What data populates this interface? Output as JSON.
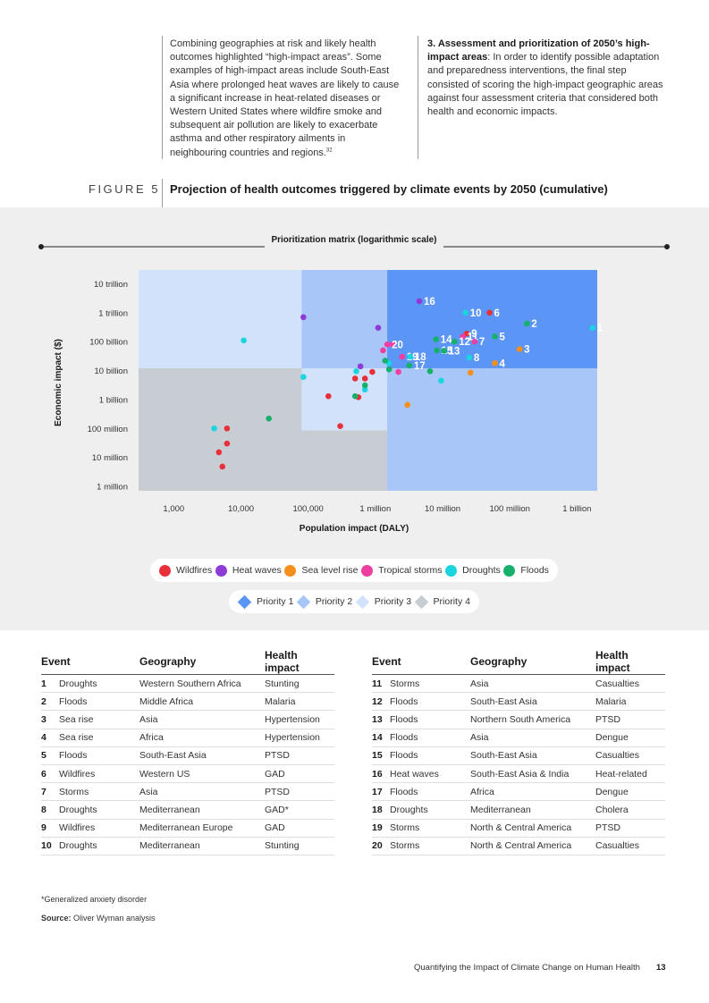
{
  "intro": {
    "left_text": "Combining geographies at risk and likely health outcomes highlighted “high-impact areas”. Some examples of high-impact areas include South-East Asia where prolonged heat waves are likely to cause a significant increase in heat-related diseases or Western United States where wildfire smoke and subsequent air pollution are likely to exacerbate asthma and other respiratory ailments in neighbouring countries and regions.",
    "left_footnote_ref": "32",
    "right_heading": "3. Assessment and prioritization of 2050’s high-impact areas",
    "right_text": ": In order to identify possible adaptation and preparedness interventions, the final step consisted of scoring the high-impact geographic areas against four assessment criteria that considered both health and economic impacts."
  },
  "figure": {
    "label": "FIGURE 5",
    "title": "Projection of health outcomes triggered by climate events by 2050 (cumulative)"
  },
  "chart_data": {
    "type": "scatter",
    "title": "Prioritization matrix (logarithmic scale)",
    "xlabel": "Population impact (DALY)",
    "ylabel": "Economic impact ($)",
    "x_scale": "log",
    "y_scale": "log",
    "xlim": [
      300,
      2000000000
    ],
    "ylim": [
      700000,
      30000000000000
    ],
    "x_ticks": [
      {
        "value": 1000,
        "label": "1,000"
      },
      {
        "value": 10000,
        "label": "10,000"
      },
      {
        "value": 100000,
        "label": "100,000"
      },
      {
        "value": 1000000,
        "label": "1 million"
      },
      {
        "value": 10000000,
        "label": "10 million"
      },
      {
        "value": 100000000,
        "label": "100 million"
      },
      {
        "value": 1000000000,
        "label": "1 billion"
      }
    ],
    "y_ticks": [
      {
        "value": 1000000,
        "label": "1 million"
      },
      {
        "value": 10000000,
        "label": "10 million"
      },
      {
        "value": 100000000,
        "label": "100 million"
      },
      {
        "value": 1000000000,
        "label": "1 billion"
      },
      {
        "value": 10000000000,
        "label": "10 billion"
      },
      {
        "value": 100000000000,
        "label": "100 billion"
      },
      {
        "value": 1000000000000,
        "label": "1 trillion"
      },
      {
        "value": 10000000000000,
        "label": "10 trillion"
      }
    ],
    "priority_zones": [
      {
        "priority": 4,
        "x0": 300,
        "x1": 1500000,
        "y0": 700000,
        "y1": 12000000000
      },
      {
        "priority": 3,
        "x0": 300,
        "x1": 80000,
        "y0": 12000000000,
        "y1": 30000000000000
      },
      {
        "priority": 3,
        "x0": 80000,
        "x1": 1500000,
        "y0": 85000000,
        "y1": 12000000000
      },
      {
        "priority": 2,
        "x0": 80000,
        "x1": 1500000,
        "y0": 12000000000,
        "y1": 30000000000000
      },
      {
        "priority": 2,
        "x0": 1500000,
        "x1": 2000000000,
        "y0": 700000,
        "y1": 12000000000
      },
      {
        "priority": 1,
        "x0": 1500000,
        "x1": 2000000000,
        "y0": 12000000000,
        "y1": 30000000000000
      }
    ],
    "priority_colors": {
      "1": "#5b95f5",
      "2": "#a8c6f8",
      "3": "#d3e2fb",
      "4": "#c8cdd4"
    },
    "series": [
      {
        "name": "Wildfires",
        "color": "#e8303a",
        "points": [
          {
            "x": 4700,
            "y": 15000000
          },
          {
            "x": 5300,
            "y": 4800000
          },
          {
            "x": 6200,
            "y": 30000000
          },
          {
            "x": 6200,
            "y": 100000000
          },
          {
            "x": 200000,
            "y": 1300000000
          },
          {
            "x": 300000,
            "y": 120000000
          },
          {
            "x": 500000,
            "y": 5300000000
          },
          {
            "x": 560000,
            "y": 1200000000
          },
          {
            "x": 700000,
            "y": 5300000000
          },
          {
            "x": 900000,
            "y": 9000000000
          },
          {
            "x": 23000000,
            "y": 190000000000,
            "label": "9"
          },
          {
            "x": 50000000,
            "y": 1000000000000,
            "label": "6"
          }
        ]
      },
      {
        "name": "Heat waves",
        "color": "#8d3ad7",
        "points": [
          {
            "x": 85000,
            "y": 700000000000
          },
          {
            "x": 600000,
            "y": 14000000000
          },
          {
            "x": 1100000,
            "y": 300000000000
          },
          {
            "x": 4500000,
            "y": 2500000000000,
            "label": "16"
          }
        ]
      },
      {
        "name": "Sea level rise",
        "color": "#f58f1b",
        "points": [
          {
            "x": 3000000,
            "y": 650000000
          },
          {
            "x": 26000000,
            "y": 8500000000
          },
          {
            "x": 60000000,
            "y": 18000000000,
            "label": "4"
          },
          {
            "x": 140000000,
            "y": 55000000000,
            "label": "3"
          }
        ]
      },
      {
        "name": "Tropical storms",
        "color": "#ef3ea2",
        "points": [
          {
            "x": 1300000,
            "y": 50000000000
          },
          {
            "x": 1800000,
            "y": 80000000000
          },
          {
            "x": 2200000,
            "y": 9000000000
          },
          {
            "x": 2500000,
            "y": 30000000000,
            "label": "19"
          },
          {
            "x": 1500000,
            "y": 80000000000,
            "label": "20"
          },
          {
            "x": 20000000,
            "y": 150000000000,
            "label": "11"
          },
          {
            "x": 30000000,
            "y": 100000000000,
            "label": "7"
          }
        ]
      },
      {
        "name": "Droughts",
        "color": "#1ad4df",
        "points": [
          {
            "x": 4000,
            "y": 100000000
          },
          {
            "x": 11000,
            "y": 110000000000
          },
          {
            "x": 85000,
            "y": 6000000000
          },
          {
            "x": 520000,
            "y": 9500000000
          },
          {
            "x": 700000,
            "y": 2200000000
          },
          {
            "x": 1600000,
            "y": 18000000000
          },
          {
            "x": 9500000,
            "y": 4500000000
          },
          {
            "x": 22000000,
            "y": 1000000000000,
            "label": "10"
          },
          {
            "x": 3300000,
            "y": 30000000000,
            "label": "18"
          },
          {
            "x": 25000000,
            "y": 28000000000,
            "label": "8"
          },
          {
            "x": 1700000000,
            "y": 300000000000,
            "label": "1"
          }
        ]
      },
      {
        "name": "Floods",
        "color": "#17b06b",
        "points": [
          {
            "x": 26000,
            "y": 220000000
          },
          {
            "x": 500000,
            "y": 1300000000
          },
          {
            "x": 700000,
            "y": 3100000000
          },
          {
            "x": 1400000,
            "y": 22000000000
          },
          {
            "x": 1600000,
            "y": 11000000000
          },
          {
            "x": 6500000,
            "y": 9500000000
          },
          {
            "x": 3200000,
            "y": 15000000000,
            "label": "17"
          },
          {
            "x": 8200000,
            "y": 50000000000,
            "label": "15"
          },
          {
            "x": 10500000,
            "y": 48000000000,
            "label": "13"
          },
          {
            "x": 8000000,
            "y": 120000000000,
            "label": "14"
          },
          {
            "x": 15000000,
            "y": 100000000000,
            "label": "12"
          },
          {
            "x": 60000000,
            "y": 150000000000,
            "label": "5"
          },
          {
            "x": 180000000,
            "y": 420000000000,
            "label": "2"
          }
        ]
      }
    ],
    "legend_events": [
      "Wildfires",
      "Heat waves",
      "Sea level rise",
      "Tropical storms",
      "Droughts",
      "Floods"
    ],
    "legend_priorities": [
      "Priority 1",
      "Priority 2",
      "Priority 3",
      "Priority 4"
    ],
    "legend_placement": "bottom",
    "grid": false
  },
  "tables": {
    "headers": [
      "Event",
      "Geography",
      "Health impact"
    ],
    "left": [
      {
        "num": "1",
        "event": "Droughts",
        "geo": "Western Southern Africa",
        "impact": "Stunting"
      },
      {
        "num": "2",
        "event": "Floods",
        "geo": "Middle Africa",
        "impact": "Malaria"
      },
      {
        "num": "3",
        "event": "Sea rise",
        "geo": "Asia",
        "impact": "Hypertension"
      },
      {
        "num": "4",
        "event": "Sea rise",
        "geo": "Africa",
        "impact": "Hypertension"
      },
      {
        "num": "5",
        "event": "Floods",
        "geo": "South-East Asia",
        "impact": "PTSD"
      },
      {
        "num": "6",
        "event": "Wildfires",
        "geo": "Western US",
        "impact": "GAD"
      },
      {
        "num": "7",
        "event": "Storms",
        "geo": "Asia",
        "impact": "PTSD"
      },
      {
        "num": "8",
        "event": "Droughts",
        "geo": "Mediterranean",
        "impact": "GAD*"
      },
      {
        "num": "9",
        "event": "Wildfires",
        "geo": "Mediterranean Europe",
        "impact": "GAD"
      },
      {
        "num": "10",
        "event": "Droughts",
        "geo": "Mediterranean",
        "impact": "Stunting"
      }
    ],
    "right": [
      {
        "num": "11",
        "event": "Storms",
        "geo": "Asia",
        "impact": "Casualties"
      },
      {
        "num": "12",
        "event": "Floods",
        "geo": "South-East Asia",
        "impact": "Malaria"
      },
      {
        "num": "13",
        "event": "Floods",
        "geo": "Northern South America",
        "impact": "PTSD"
      },
      {
        "num": "14",
        "event": "Floods",
        "geo": "Asia",
        "impact": "Dengue"
      },
      {
        "num": "15",
        "event": "Floods",
        "geo": "South-East Asia",
        "impact": "Casualties"
      },
      {
        "num": "16",
        "event": "Heat waves",
        "geo": "South-East Asia & India",
        "impact": "Heat-related"
      },
      {
        "num": "17",
        "event": "Floods",
        "geo": "Africa",
        "impact": "Dengue"
      },
      {
        "num": "18",
        "event": "Droughts",
        "geo": "Mediterranean",
        "impact": "Cholera"
      },
      {
        "num": "19",
        "event": "Storms",
        "geo": "North & Central America",
        "impact": "PTSD"
      },
      {
        "num": "20",
        "event": "Storms",
        "geo": "North & Central America",
        "impact": "Casualties"
      }
    ]
  },
  "footnote": "*Generalized anxiety disorder",
  "source_label": "Source:",
  "source_text": " Oliver Wyman analysis",
  "footer": {
    "text": "Quantifying the Impact of Climate Change on Human Health",
    "page": "13"
  }
}
